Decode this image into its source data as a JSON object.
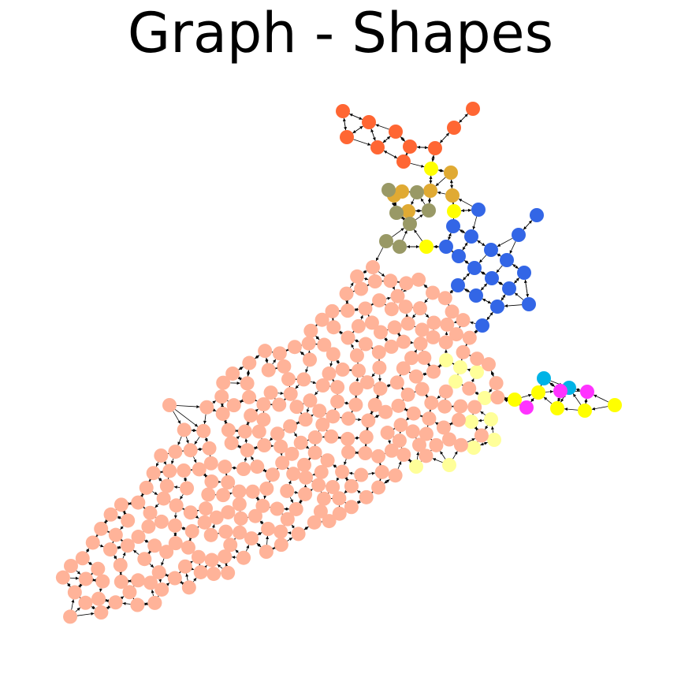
{
  "header": {
    "title": "Graph - Shapes"
  }
}
